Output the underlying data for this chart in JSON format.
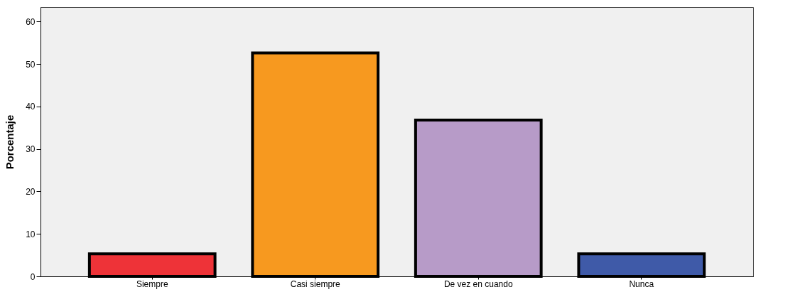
{
  "chart_data": {
    "type": "bar",
    "ylabel": "Porcentaje",
    "categories": [
      "Siempre",
      "Casi siempre",
      "De vez en cuando",
      "Nunca"
    ],
    "values": [
      5.3,
      52.6,
      36.8,
      5.3
    ],
    "colors": [
      "#ee3338",
      "#f7991f",
      "#b79bc8",
      "#3f5aa8"
    ],
    "ylim": [
      0,
      63.4
    ],
    "yticks": [
      0,
      10,
      20,
      30,
      40,
      50,
      60
    ],
    "grid": false
  }
}
